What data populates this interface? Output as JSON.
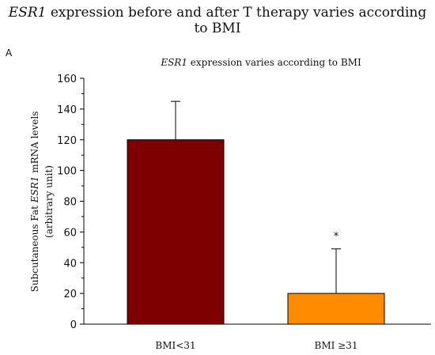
{
  "figure": {
    "title_italic": "ESR1",
    "title_rest": " expression before and after T therapy varies according to BMI",
    "panel_label": "A"
  },
  "chart_data": {
    "type": "bar",
    "title_italic": "ESR1",
    "title_rest": " expression varies according to BMI",
    "categories": [
      "BMI<31",
      "BMI ≥31"
    ],
    "values": [
      120,
      20
    ],
    "error_upper": [
      145,
      49
    ],
    "annotations": [
      "",
      "*"
    ],
    "ylabel_line1_pre": "Subcutaneous Fat ",
    "ylabel_line1_italic": "ESR1",
    "ylabel_line1_post": " mRNA levels",
    "ylabel_line2": "(arbitrary unit)",
    "ylim": [
      0,
      160
    ],
    "yticks": [
      0,
      20,
      40,
      60,
      80,
      100,
      120,
      140,
      160
    ],
    "colors": [
      "#7f0000",
      "#ff8c00"
    ],
    "grid": false
  }
}
